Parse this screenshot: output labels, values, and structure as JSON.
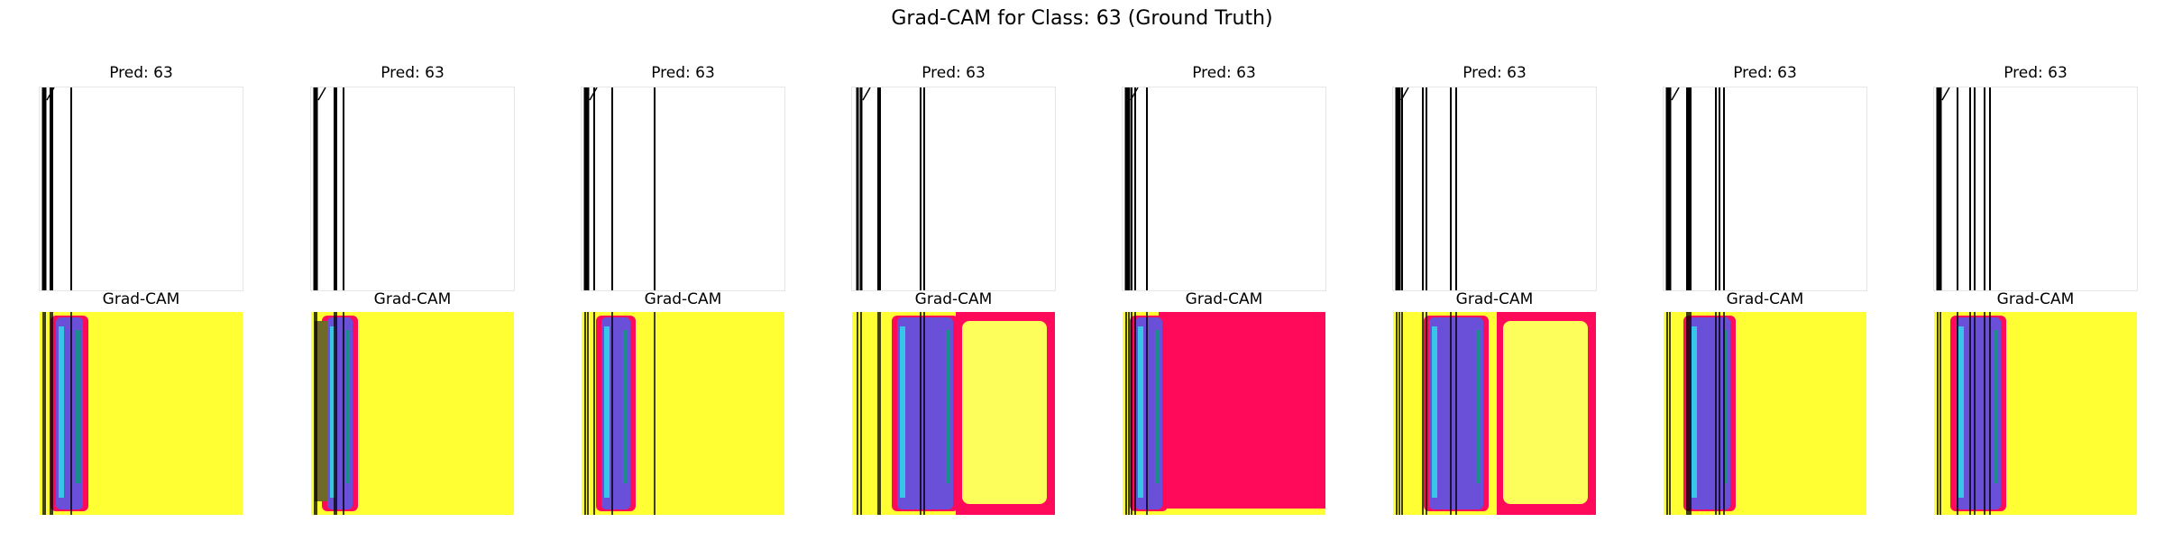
{
  "figure": {
    "title": "Grad-CAM for Class: 63 (Ground Truth)"
  },
  "colors": {
    "background": "#ffffff",
    "line": "#000000",
    "cam_low": "#ffff33",
    "cam_high": "#ff0a5a",
    "cam_pale": "#fdfd5c",
    "cam_blue": "#6a4fd8",
    "cam_cyan": "#38c6e8",
    "cam_teal": "#1a8c8c",
    "cam_olive": "#6f6a2a"
  },
  "panels": [
    {
      "pred_label": "Pred: 63",
      "cam_label": "Grad-CAM",
      "heat_region": "none"
    },
    {
      "pred_label": "Pred: 63",
      "cam_label": "Grad-CAM",
      "heat_region": "none"
    },
    {
      "pred_label": "Pred: 63",
      "cam_label": "Grad-CAM",
      "heat_region": "none"
    },
    {
      "pred_label": "Pred: 63",
      "cam_label": "Grad-CAM",
      "heat_region": "frame"
    },
    {
      "pred_label": "Pred: 63",
      "cam_label": "Grad-CAM",
      "heat_region": "full"
    },
    {
      "pred_label": "Pred: 63",
      "cam_label": "Grad-CAM",
      "heat_region": "frame"
    },
    {
      "pred_label": "Pred: 63",
      "cam_label": "Grad-CAM",
      "heat_region": "none"
    },
    {
      "pred_label": "Pred: 63",
      "cam_label": "Grad-CAM",
      "heat_region": "none"
    }
  ]
}
